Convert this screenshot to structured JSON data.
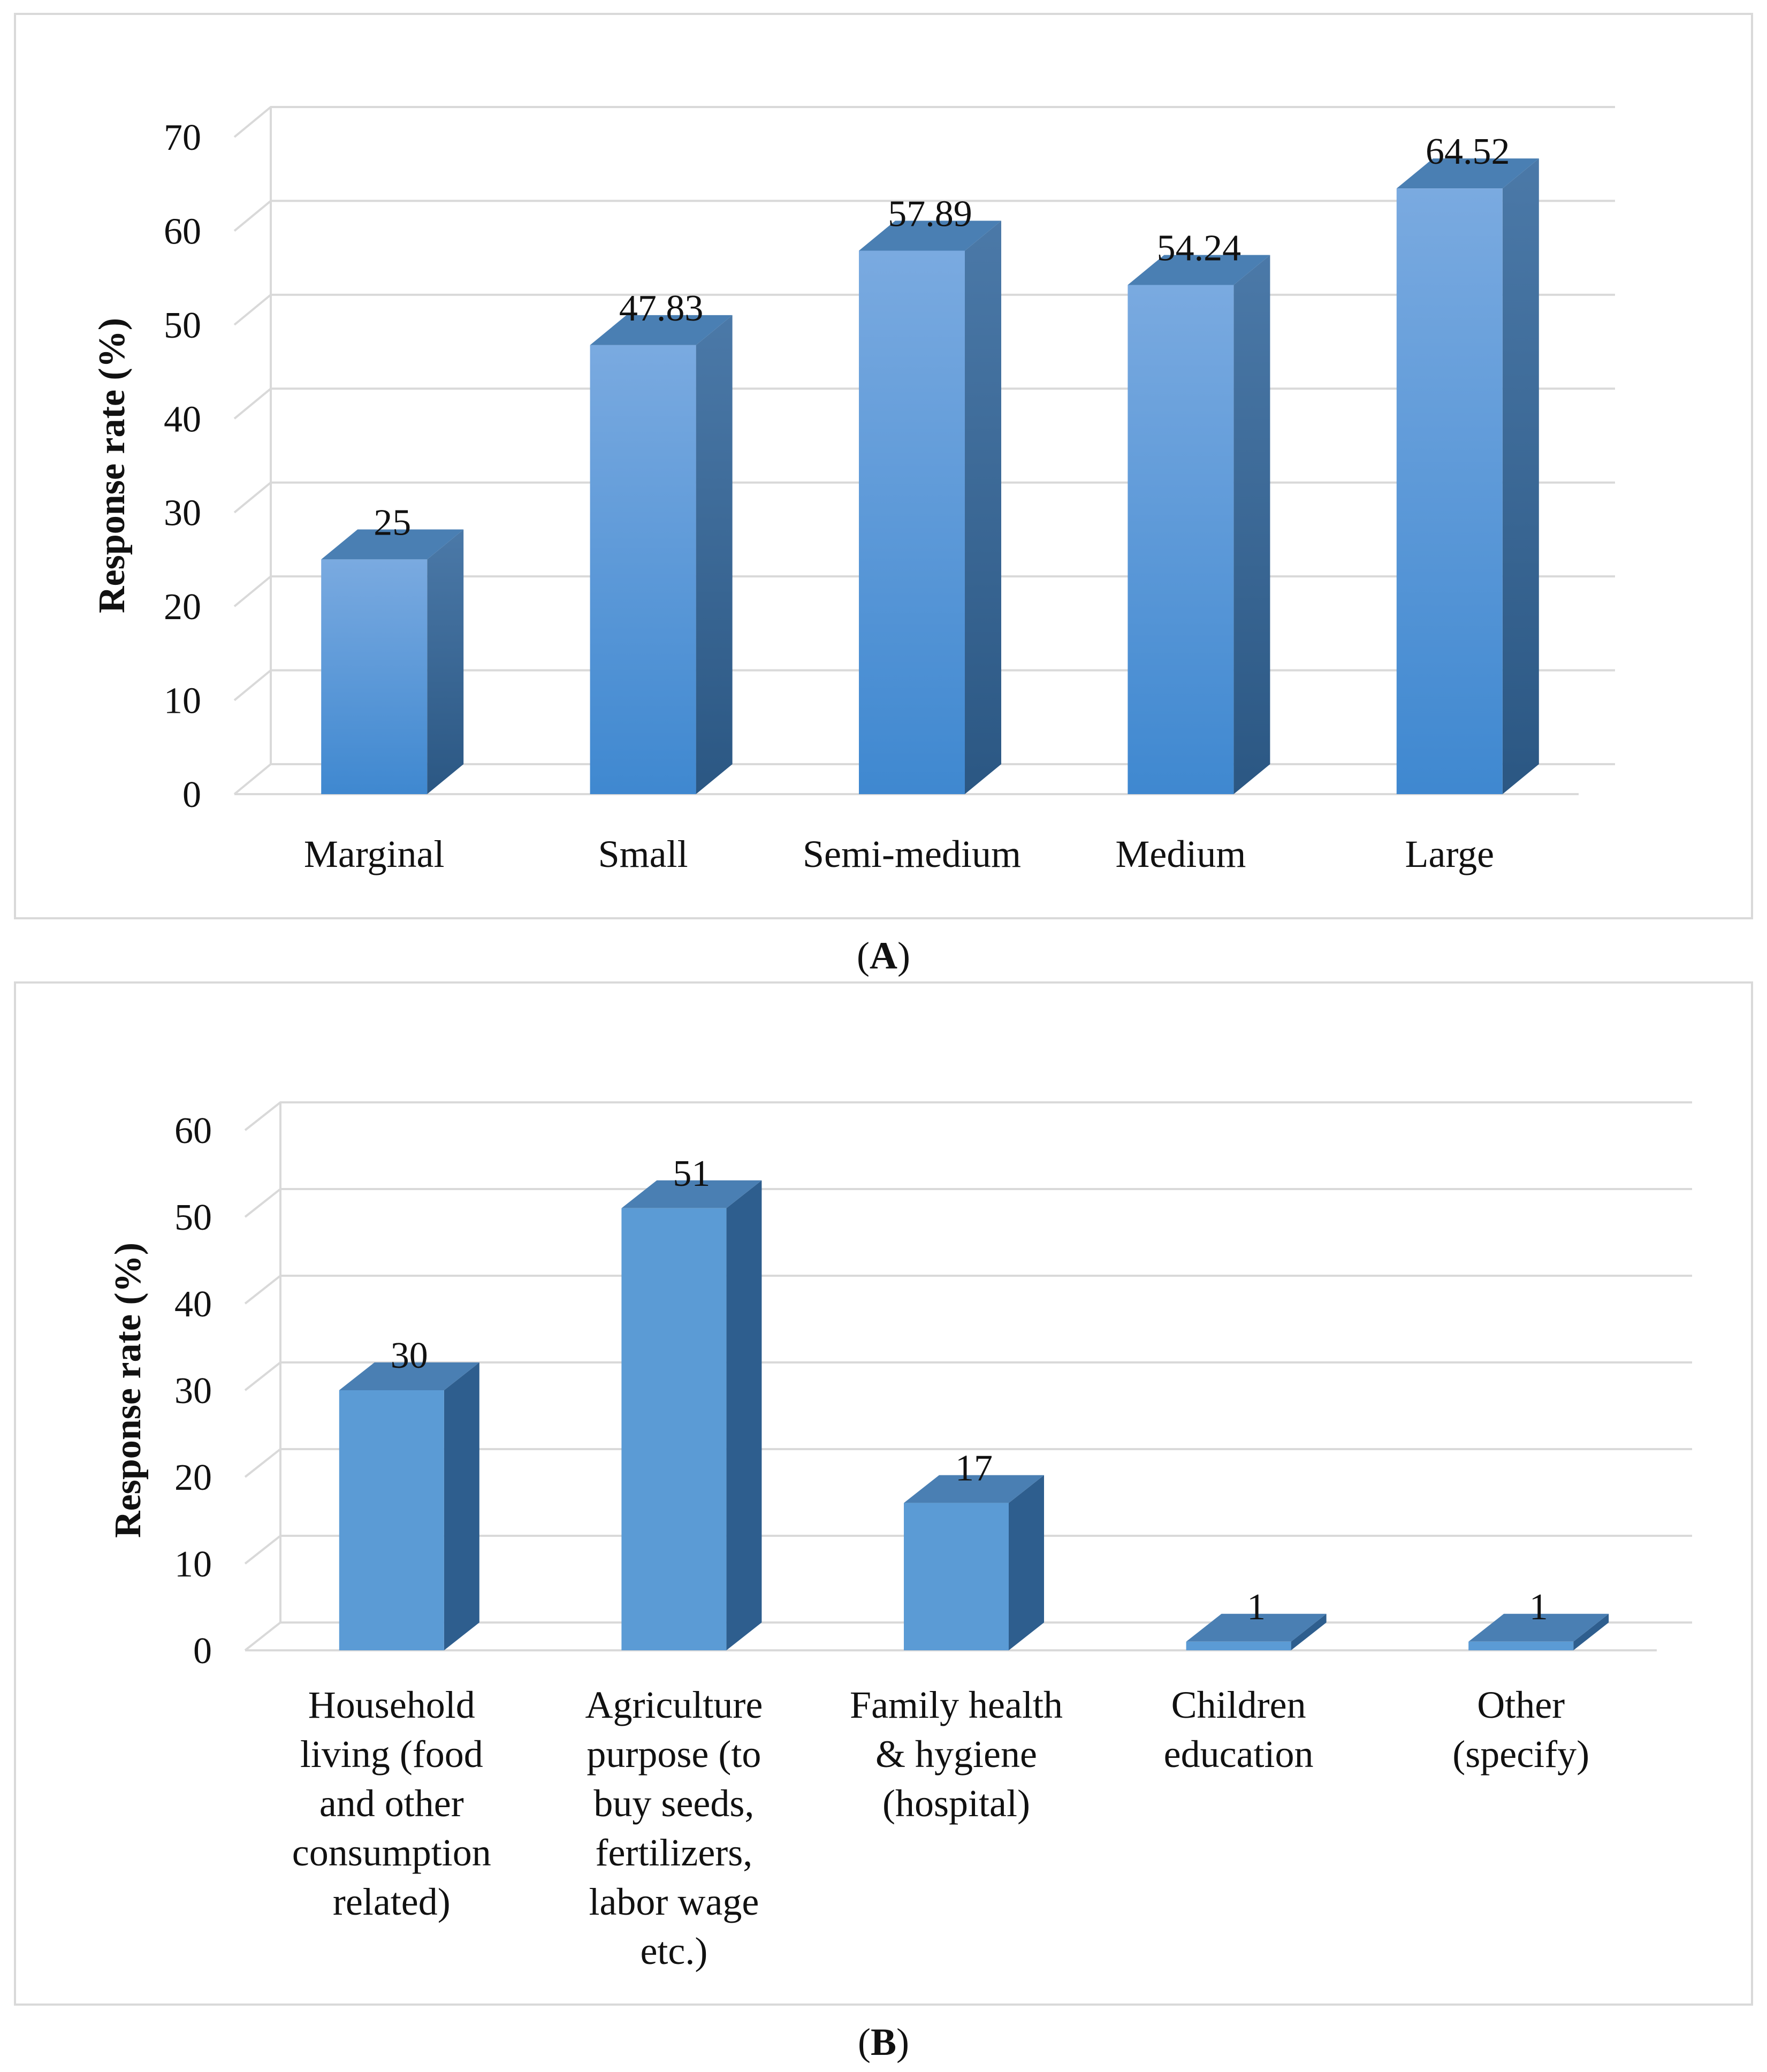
{
  "chart_data": [
    {
      "type": "bar",
      "caption_letter": "A",
      "ylabel": "Response rate (%)",
      "ylim": [
        0,
        70
      ],
      "ticks": [
        0,
        10,
        20,
        30,
        40,
        50,
        60,
        70
      ],
      "categories": [
        [
          "Marginal"
        ],
        [
          "Small"
        ],
        [
          "Semi-medium"
        ],
        [
          "Medium"
        ],
        [
          "Large"
        ]
      ],
      "values": [
        25,
        47.83,
        57.89,
        54.24,
        64.52
      ],
      "labels": [
        "25",
        "47.83",
        "57.89",
        "54.24",
        "64.52"
      ]
    },
    {
      "type": "bar",
      "caption_letter": "B",
      "ylabel": "Response rate (%)",
      "ylim": [
        0,
        60
      ],
      "ticks": [
        0,
        10,
        20,
        30,
        40,
        50,
        60
      ],
      "categories": [
        [
          "Household",
          "living (food",
          "and other",
          "consumption",
          "related)"
        ],
        [
          "Agriculture",
          "purpose (to",
          "buy seeds,",
          "fertilizers,",
          "labor wage",
          "etc.)"
        ],
        [
          "Family health",
          "& hygiene",
          "(hospital)"
        ],
        [
          "Children",
          "education"
        ],
        [
          "Other",
          "(specify)"
        ]
      ],
      "values": [
        30,
        51,
        17,
        1,
        1
      ],
      "labels": [
        "30",
        "51",
        "17",
        "1",
        "1"
      ]
    }
  ],
  "colors": {
    "bar_front_top": "#7aaae0",
    "bar_front_bottom": "#3f88d0",
    "bar_front_flat": "#5b9bd5",
    "bar_side": "#2e5e8e",
    "bar_top": "#4a7fb3",
    "grid": "#d9d9d9",
    "frame": "#d9d9d9"
  }
}
